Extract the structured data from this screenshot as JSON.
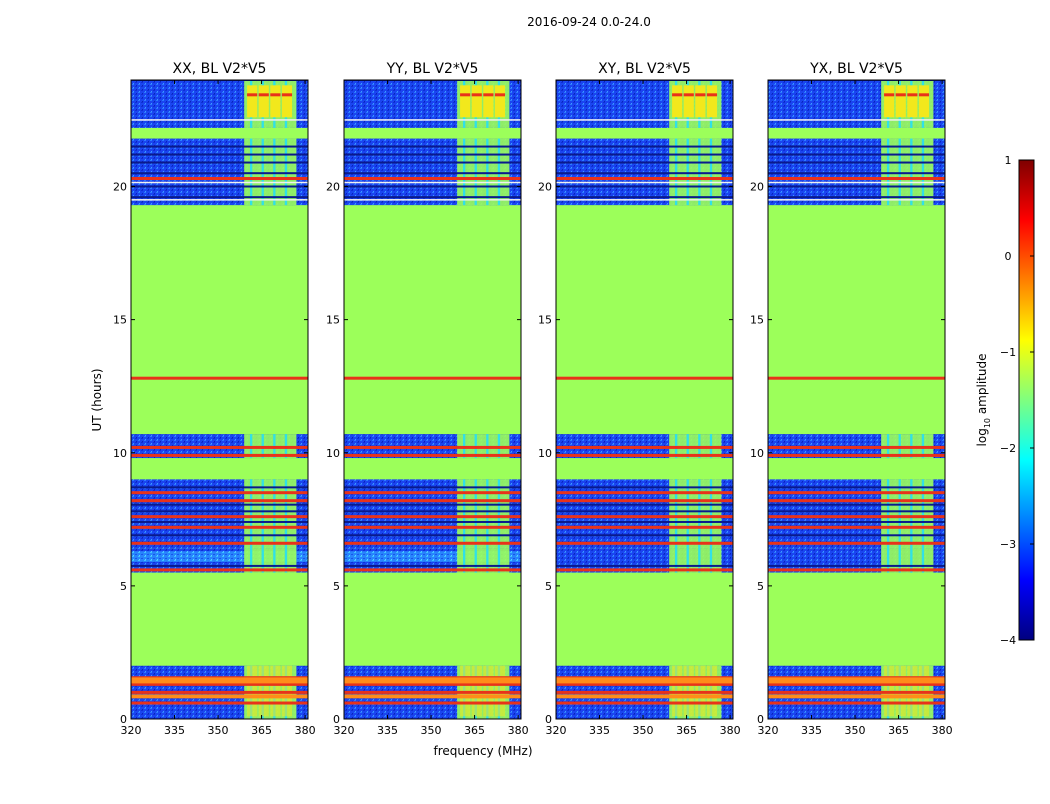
{
  "figure": {
    "suptitle": "2016-09-24 0.0-24.0",
    "ylabel": "UT (hours)",
    "xlabel": "frequency (MHz)"
  },
  "colors": {
    "background": "#9cff5a",
    "noise": "#1a45f0",
    "noise_light": "#2aa8ff",
    "dark_line": "#0a1a8c",
    "red_line": "#e8321a",
    "orange_line": "#ff8c1a",
    "yellow": "#f2e81c",
    "cyan": "#30e0e8",
    "white_line": "#f0f0f0"
  },
  "chart_data": [
    {
      "type": "heatmap",
      "title": "XX, BL V2*V5",
      "xlim": [
        320,
        381
      ],
      "ylim": [
        0,
        24
      ],
      "xticks": [
        320,
        335,
        350,
        365,
        380
      ],
      "yticks": [
        0,
        5,
        10,
        15,
        20
      ],
      "rfi_frequency_range": [
        359,
        377
      ]
    },
    {
      "type": "heatmap",
      "title": "YY, BL V2*V5",
      "xlim": [
        320,
        381
      ],
      "ylim": [
        0,
        24
      ],
      "xticks": [
        320,
        335,
        350,
        365,
        380
      ],
      "yticks": [
        0,
        5,
        10,
        15,
        20
      ],
      "rfi_frequency_range": [
        359,
        377
      ]
    },
    {
      "type": "heatmap",
      "title": "XY, BL V2*V5",
      "xlim": [
        320,
        381
      ],
      "ylim": [
        0,
        24
      ],
      "xticks": [
        320,
        335,
        350,
        365,
        380
      ],
      "yticks": [
        0,
        5,
        10,
        15,
        20
      ],
      "rfi_frequency_range": [
        359,
        377
      ]
    },
    {
      "type": "heatmap",
      "title": "YX, BL V2*V5",
      "xlim": [
        320,
        381
      ],
      "ylim": [
        0,
        24
      ],
      "xticks": [
        320,
        335,
        350,
        365,
        380
      ],
      "yticks": [
        0,
        5,
        10,
        15,
        20
      ],
      "rfi_frequency_range": [
        359,
        377
      ]
    }
  ],
  "colorbar": {
    "label": "log10 amplitude",
    "label_prefix": "log",
    "label_sub": "10",
    "label_suffix": " amplitude",
    "range": [
      -4,
      1
    ],
    "ticks": [
      1,
      0,
      -1,
      -2,
      -3,
      -4
    ],
    "colormap": [
      "#00007f",
      "#0000ff",
      "#007fff",
      "#00ffff",
      "#7fff7f",
      "#ffff00",
      "#ff7f00",
      "#ff0000",
      "#7f0000"
    ]
  },
  "time_structure": {
    "noise_bands": [
      [
        0,
        2.0
      ],
      [
        5.5,
        6.4
      ],
      [
        6.4,
        9.0
      ],
      [
        9.8,
        10.7
      ],
      [
        19.3,
        21.8
      ],
      [
        22.2,
        24
      ]
    ],
    "red_lines": [
      0.6,
      1.0,
      1.3,
      1.55,
      5.6,
      6.6,
      7.2,
      7.6,
      8.2,
      8.5,
      9.9,
      10.2,
      12.8,
      20.3
    ],
    "dark_lines": [
      5.75,
      6.9,
      7.4,
      7.8,
      8.05,
      8.7,
      19.6,
      20.0,
      20.5,
      20.9,
      21.2,
      21.5,
      24.0
    ],
    "white_lines": [
      19.5,
      20.15,
      22.5
    ],
    "light_noise_band": [
      5.9,
      6.3
    ]
  }
}
